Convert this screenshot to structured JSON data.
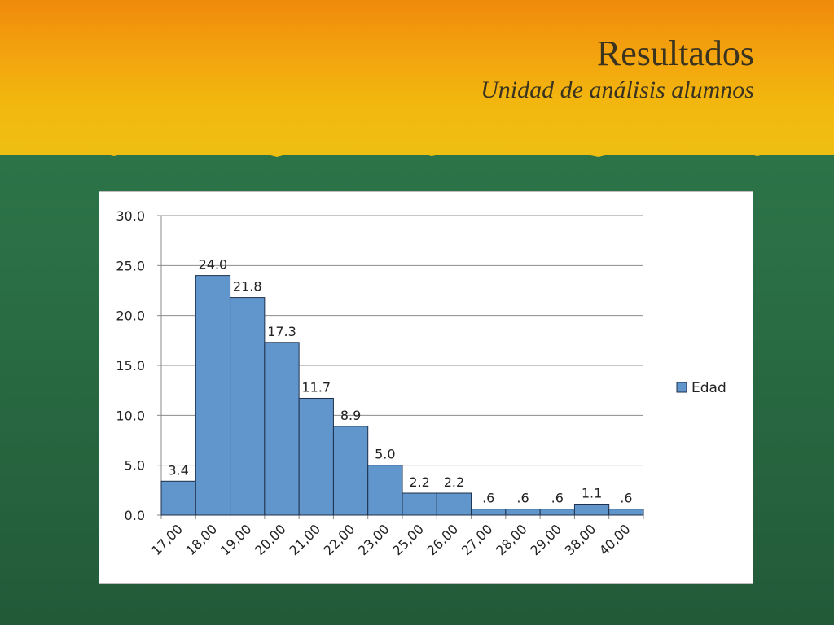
{
  "slide": {
    "title": "Resultados",
    "subtitle": "Unidad de análisis alumnos"
  },
  "colors": {
    "bar_fill": "#6096cc",
    "bar_stroke": "#1f2f4a",
    "gridline": "#8c8c8c"
  },
  "chart_data": {
    "type": "bar",
    "categories": [
      "17,00",
      "18,00",
      "19,00",
      "20,00",
      "21,00",
      "22,00",
      "23,00",
      "25,00",
      "26,00",
      "27,00",
      "28,00",
      "29,00",
      "38,00",
      "40,00"
    ],
    "series": [
      {
        "name": "Edad",
        "values": [
          3.4,
          24.0,
          21.8,
          17.3,
          11.7,
          8.9,
          5.0,
          2.2,
          2.2,
          0.6,
          0.6,
          0.6,
          1.1,
          0.6
        ],
        "value_labels": [
          "3.4",
          "24.0",
          "21.8",
          "17.3",
          "11.7",
          "8.9",
          "5.0",
          "2.2",
          "2.2",
          ".6",
          ".6",
          ".6",
          "1.1",
          ".6"
        ]
      }
    ],
    "y_ticks": [
      "0.0",
      "5.0",
      "10.0",
      "15.0",
      "20.0",
      "25.0",
      "30.0"
    ],
    "ylim": [
      0,
      30
    ],
    "grid": true,
    "legend_position": "right",
    "bar_gap": 0
  }
}
